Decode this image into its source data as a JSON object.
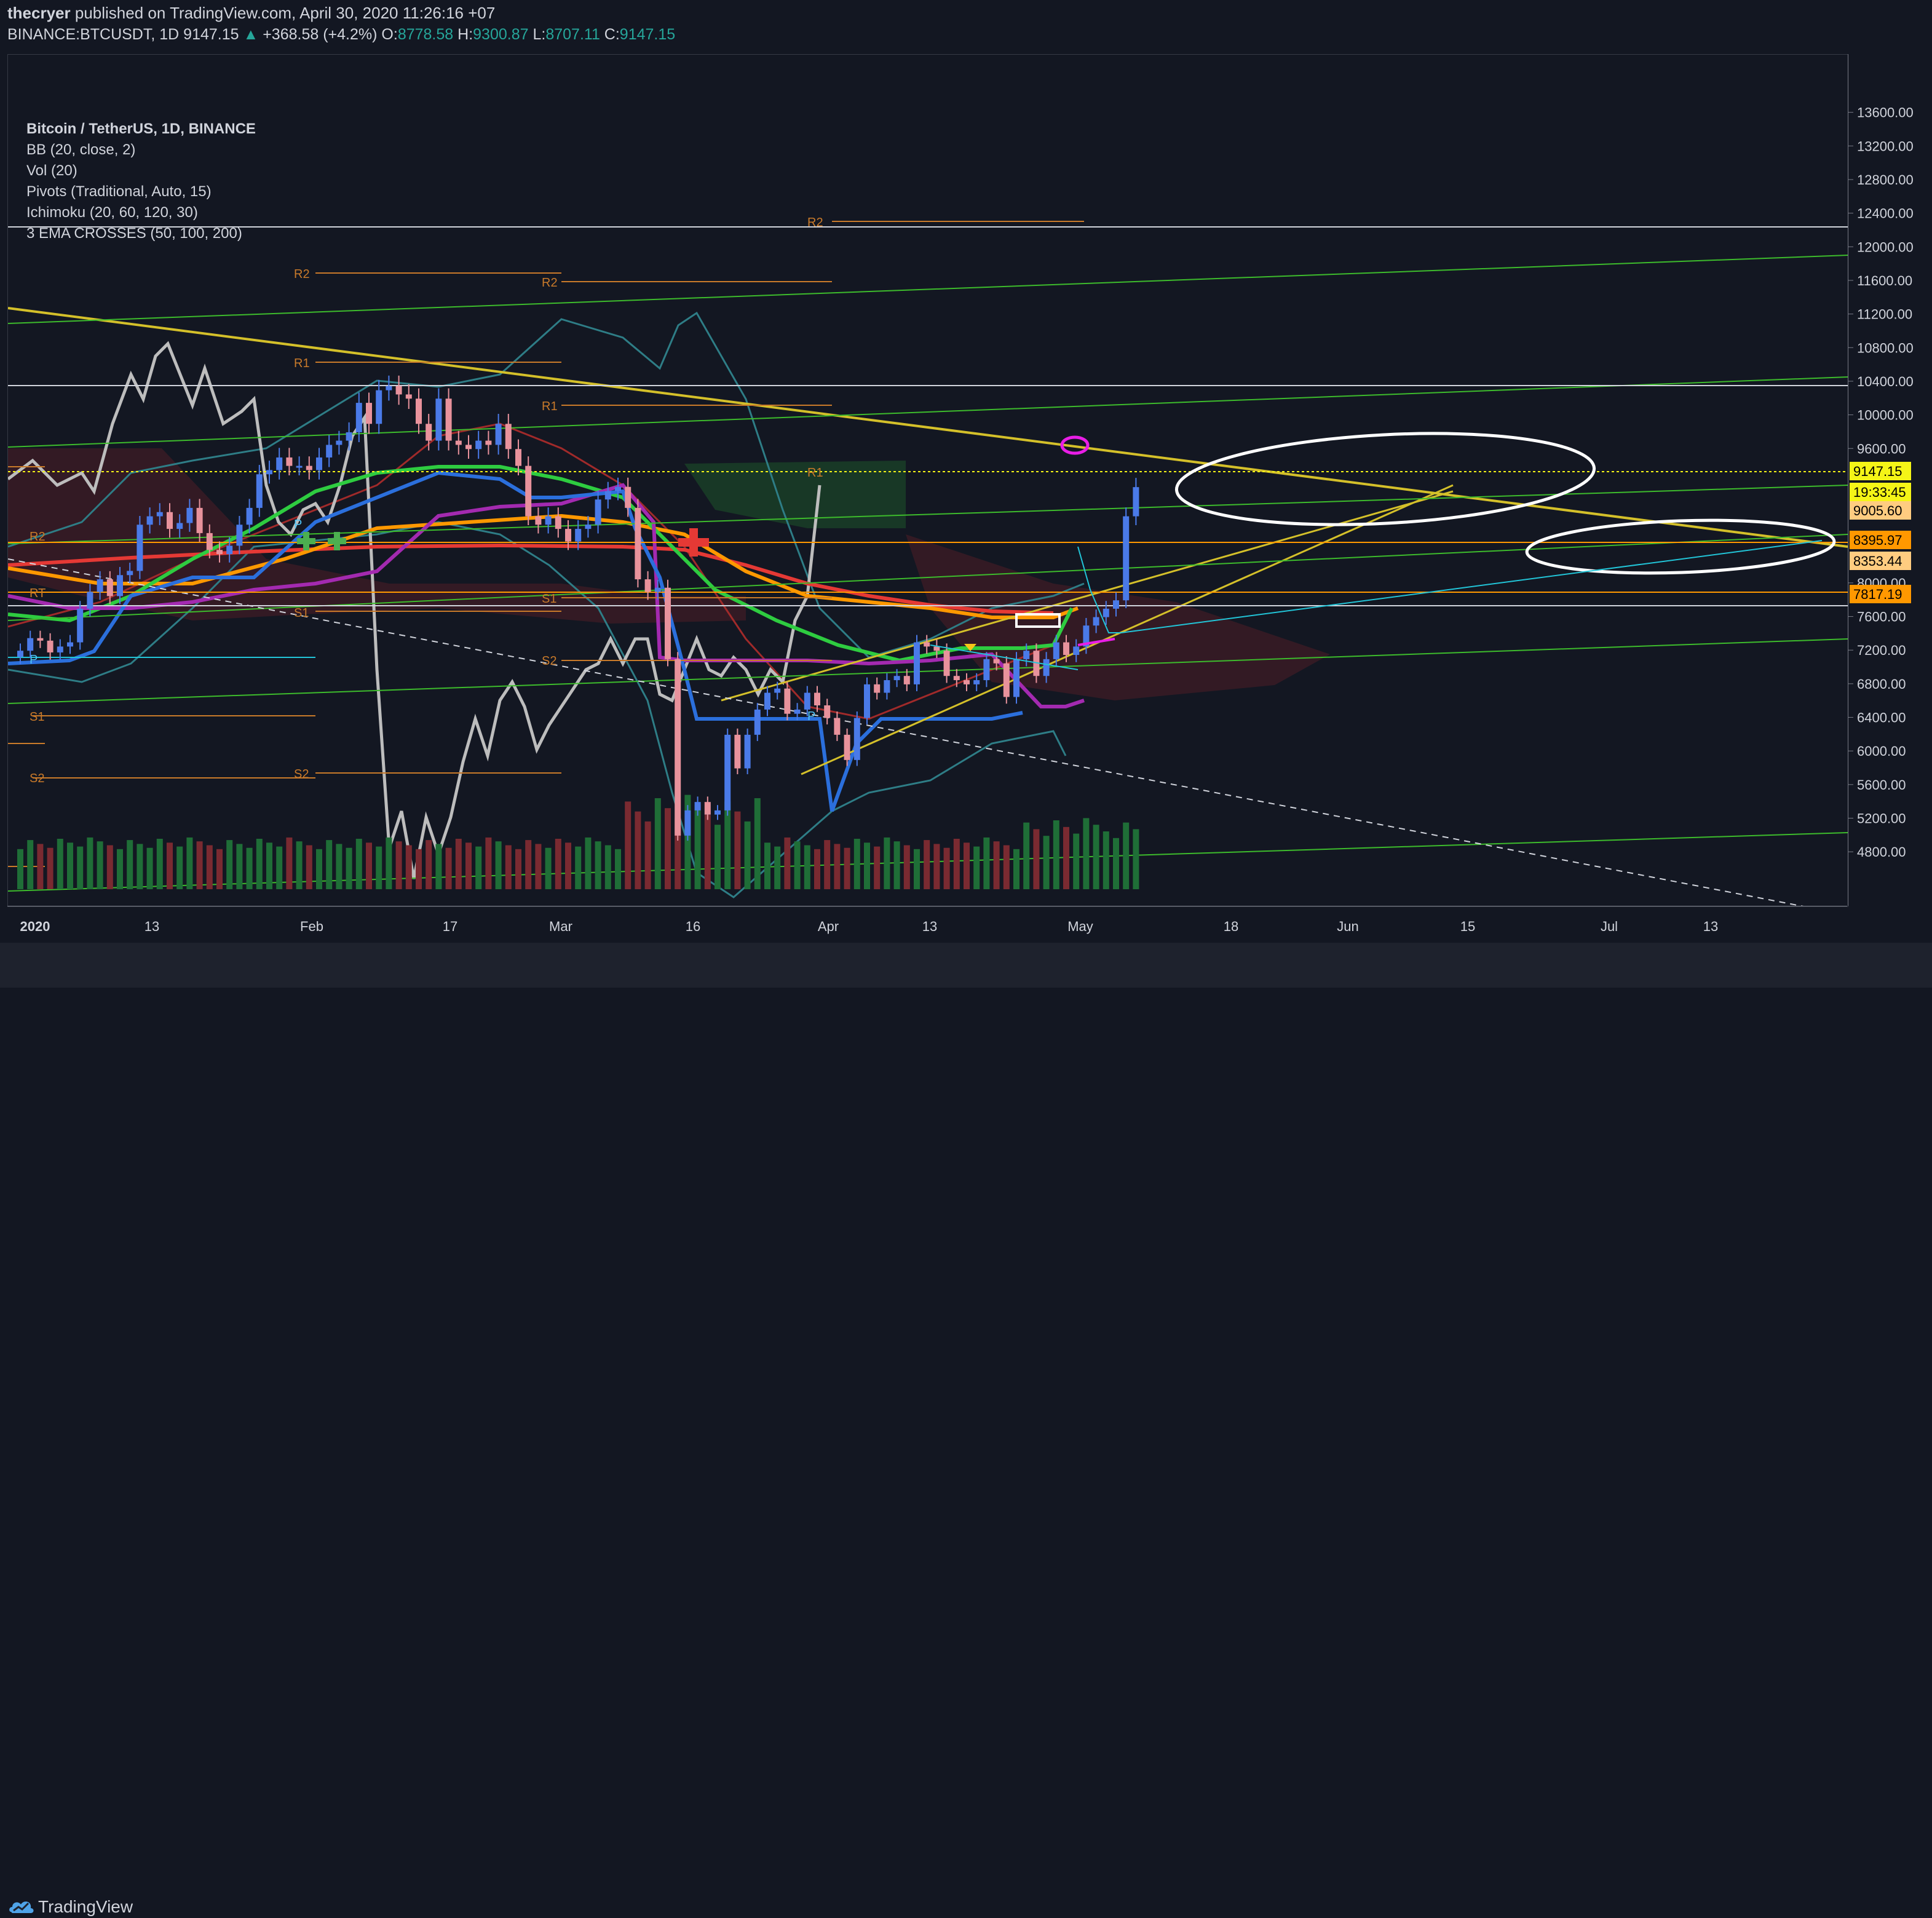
{
  "header": {
    "author": "thecryer",
    "published": "published on TradingView.com, April 30, 2020 11:26:16 +07",
    "symbol": "BINANCE:BTCUSDT, 1D",
    "last": "9147.15",
    "change": "+368.58 (+4.2%)",
    "open_label": "O:",
    "open": "8778.58",
    "high_label": "H:",
    "high": "9300.87",
    "low_label": "L:",
    "low": "8707.11",
    "close_label": "C:",
    "close": "9147.15"
  },
  "legend": {
    "title": "Bitcoin / TetherUS, 1D, BINANCE",
    "indicators": [
      "BB (20, close, 2)",
      "Vol (20)",
      "Pivots (Traditional, Auto, 15)",
      "Ichimoku (20, 60, 120, 30)",
      "3 EMA CROSSES (50, 100, 200)"
    ]
  },
  "chart_data": {
    "type": "candlestick",
    "symbol": "BTCUSDT",
    "timeframe": "1D",
    "y_ticks": [
      13600,
      13200,
      12800,
      12400,
      12000,
      11600,
      11200,
      10800,
      10400,
      10000,
      9600,
      8000,
      7600,
      7200,
      6800,
      6400,
      6000,
      5600,
      5200,
      4800
    ],
    "y_range": [
      4450,
      14000
    ],
    "x_ticks": [
      "2020",
      "13",
      "Feb",
      "17",
      "Mar",
      "16",
      "Apr",
      "13",
      "May",
      "18",
      "Jun",
      "15",
      "Jul",
      "13"
    ],
    "price_labels": [
      {
        "value": "9147.15",
        "color": "#f5f517",
        "text_color": "#000000"
      },
      {
        "value": "19:33:45",
        "color": "#f5f517",
        "text_color": "#000000"
      },
      {
        "value": "9005.60",
        "color": "#ffcc80",
        "text_color": "#000000"
      },
      {
        "value": "8395.97",
        "color": "#ff9800",
        "text_color": "#000000"
      },
      {
        "value": "8353.44",
        "color": "#ffcc80",
        "text_color": "#000000"
      },
      {
        "value": "7817.19",
        "color": "#ff9800",
        "text_color": "#000000"
      }
    ],
    "pivot_labels": [
      "R2",
      "R2",
      "R2",
      "R1",
      "R1",
      "R1",
      "R2",
      "RT",
      "S1",
      "S1",
      "S2",
      "S1",
      "S2",
      "S2",
      "P",
      "P",
      "P"
    ],
    "closes": [
      7200,
      7350,
      7320,
      7180,
      7250,
      7300,
      7700,
      7900,
      8050,
      7850,
      8100,
      8150,
      8700,
      8800,
      8850,
      8650,
      8720,
      8900,
      8600,
      8400,
      8350,
      8450,
      8700,
      8900,
      9300,
      9350,
      9500,
      9400,
      9400,
      9350,
      9500,
      9650,
      9700,
      9800,
      10150,
      9900,
      10300,
      10350,
      10250,
      10200,
      9900,
      9700,
      10200,
      9700,
      9650,
      9600,
      9700,
      9650,
      9900,
      9600,
      9400,
      8800,
      8700,
      8800,
      8650,
      8500,
      8650,
      8700,
      9000,
      9100,
      9150,
      8900,
      8050,
      7900,
      7950,
      7100,
      5000,
      5300,
      5400,
      5250,
      5300,
      6200,
      5800,
      6200,
      6500,
      6700,
      6750,
      6450,
      6500,
      6700,
      6550,
      6400,
      6200,
      5900,
      6400,
      6800,
      6700,
      6850,
      6900,
      6800,
      7300,
      7250,
      7200,
      6900,
      6850,
      6800,
      6850,
      7100,
      7050,
      6650,
      7100,
      7200,
      6900,
      7100,
      7300,
      7150,
      7250,
      7500,
      7600,
      7700,
      7800,
      8800,
      9147.15
    ],
    "volume_max_bar": 5200,
    "annotations": [
      "white ellipse",
      "white ellipse",
      "magenta ellipse",
      "white rectangle",
      "cyan projection arrows"
    ]
  },
  "footer": {
    "brand": "TradingView"
  },
  "colors": {
    "background": "#131722",
    "up": "#4a7ae8",
    "down": "#e8929c",
    "ema50": "#2ecc40",
    "ema100": "#ff9800",
    "ema200": "#e53935",
    "bb": "#2e7d86",
    "trendline": "#d4c02a",
    "channel": "#3dbb2c",
    "pivot": "#c97a2a"
  }
}
